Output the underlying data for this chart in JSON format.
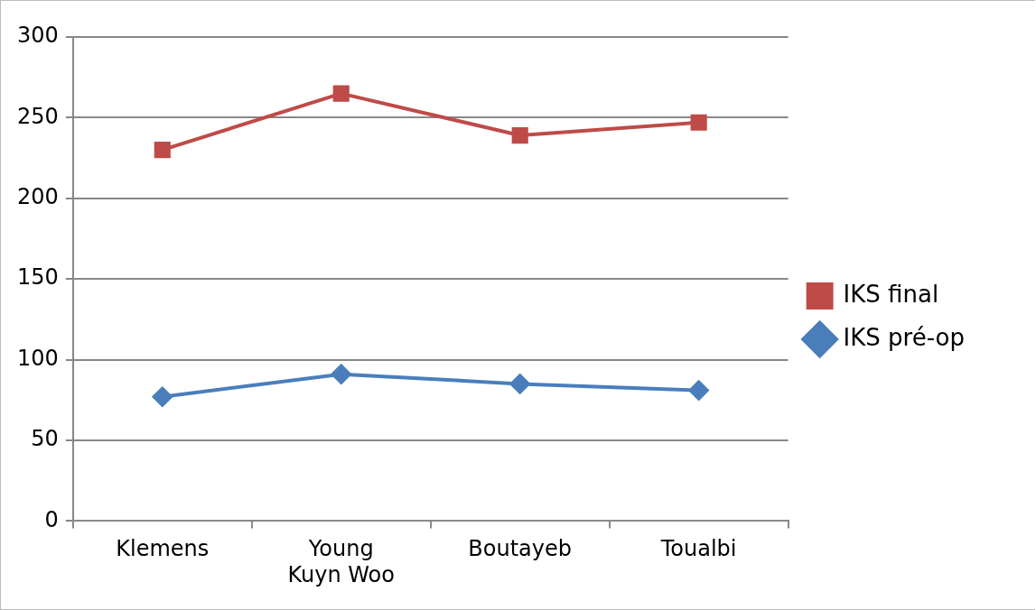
{
  "chart_data": {
    "type": "line",
    "categories": [
      "Klemens",
      "Young Kuyn Woo",
      "Boutayeb",
      "Toualbi"
    ],
    "series": [
      {
        "name": "IKS final",
        "color": "#be4b48",
        "marker": "square",
        "values": [
          230,
          265,
          239,
          247
        ]
      },
      {
        "name": "IKS pré-op",
        "color": "#4a7ebb",
        "marker": "diamond",
        "values": [
          77,
          91,
          85,
          81
        ]
      }
    ],
    "ylim": [
      0,
      300
    ],
    "yticks": [
      0,
      50,
      100,
      150,
      200,
      250,
      300
    ],
    "grid": "y",
    "legend": "right",
    "line_style": "solid"
  }
}
